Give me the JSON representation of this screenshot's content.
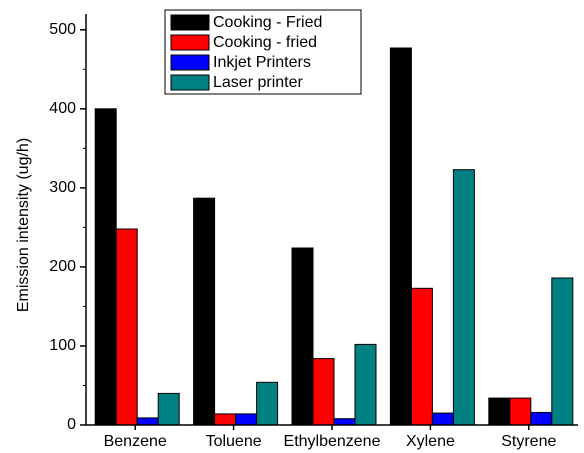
{
  "chart_data": {
    "type": "bar",
    "title": "",
    "xlabel": "",
    "ylabel": "Emission intensity  (ug/h)",
    "ylim": [
      0,
      520
    ],
    "yticks": [
      0,
      100,
      200,
      300,
      400,
      500
    ],
    "categories": [
      "Benzene",
      "Toluene",
      "Ethylbenzene",
      "Xylene",
      "Styrene"
    ],
    "series": [
      {
        "name": "Cooking - Fried",
        "color": "#000000",
        "values": [
          400,
          287,
          224,
          477,
          34
        ]
      },
      {
        "name": "Cooking - fried",
        "color": "#ff0000",
        "values": [
          248,
          14,
          84,
          173,
          34
        ]
      },
      {
        "name": "Inkjet Printers",
        "color": "#0000ff",
        "values": [
          9,
          14,
          8,
          15,
          16
        ]
      },
      {
        "name": "Laser printer",
        "color": "#008080",
        "values": [
          40,
          54,
          102,
          323,
          186
        ]
      }
    ],
    "grid": false,
    "legend_position": "top-center"
  }
}
